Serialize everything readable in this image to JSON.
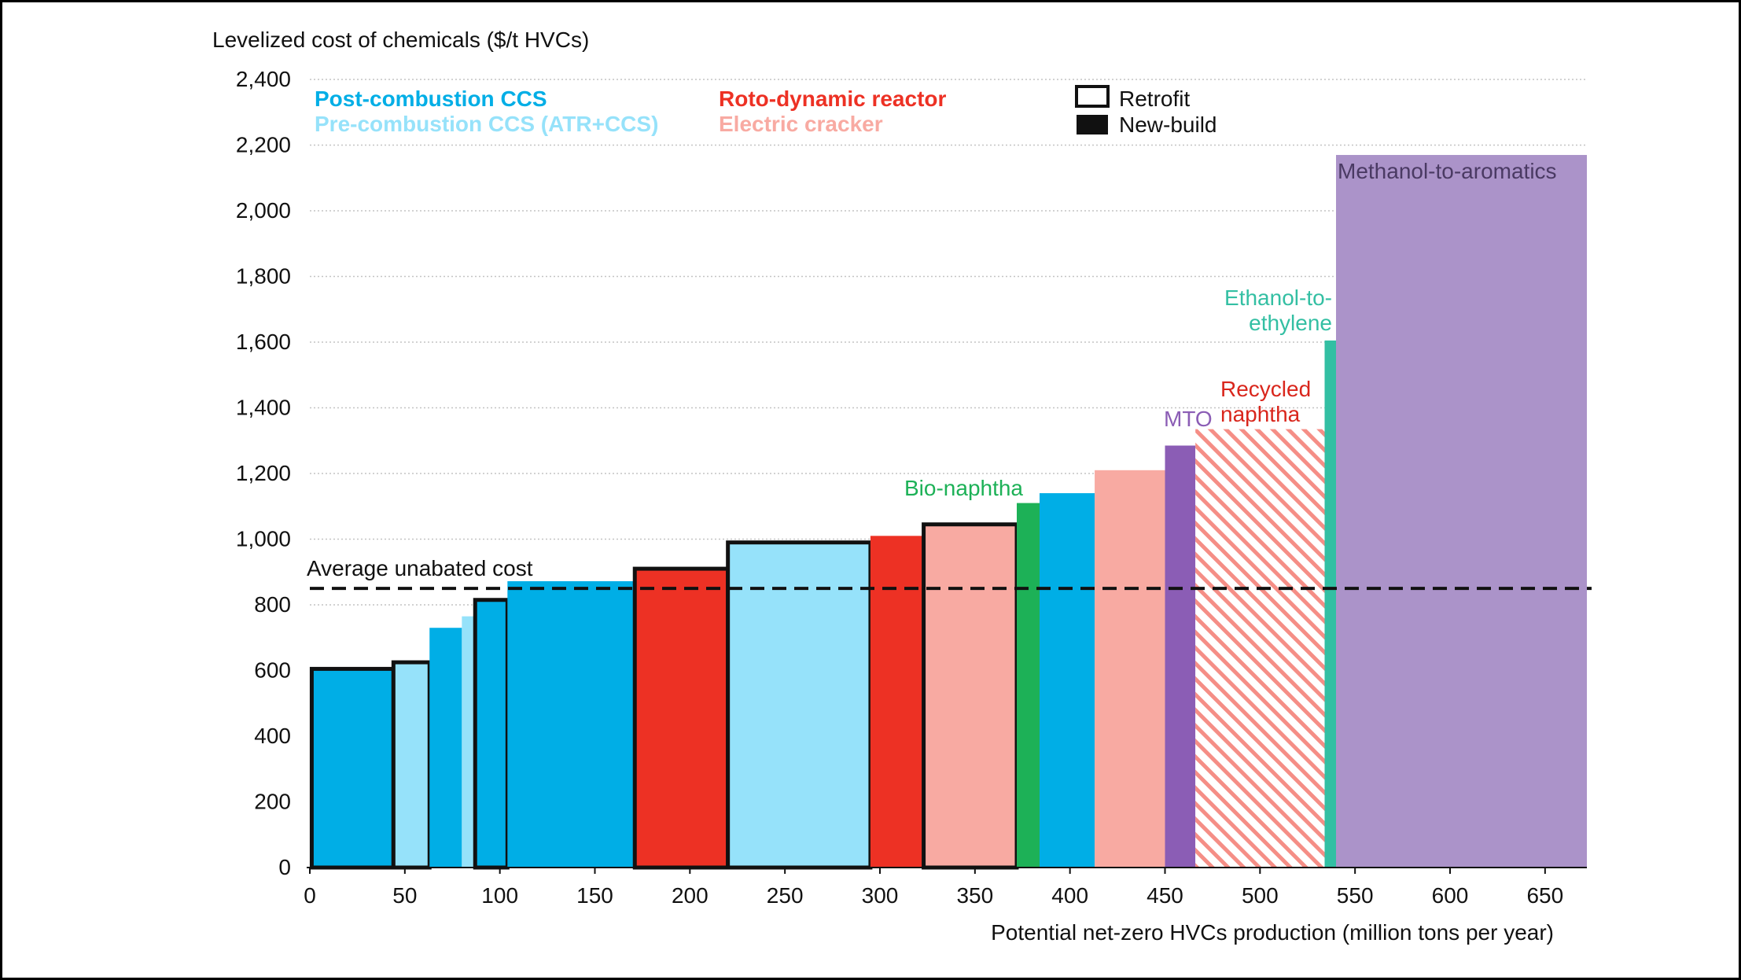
{
  "chart_data": {
    "type": "bar",
    "subtype": "variable-width cost curve",
    "ylabel": "Levelized cost of chemicals ($/t HVCs)",
    "xlabel": "Potential net-zero HVCs production (million tons per year)",
    "xlim": [
      0,
      672
    ],
    "ylim": [
      0,
      2400
    ],
    "xticks": [
      "0",
      "50",
      "100",
      "150",
      "200",
      "250",
      "300",
      "350",
      "400",
      "450",
      "500",
      "550",
      "600",
      "650"
    ],
    "yticks": [
      "0",
      "200",
      "400",
      "600",
      "800",
      "1,000",
      "1,200",
      "1,400",
      "1,600",
      "1,800",
      "2,000",
      "2,200",
      "2,400"
    ],
    "grid": "horizontal dotted",
    "legend": {
      "technologies": [
        {
          "label": "Post-combustion CCS",
          "color": "#00aee6"
        },
        {
          "label": "Pre-combustion CCS (ATR+CCS)",
          "color": "#96e2fa"
        },
        {
          "label": "Roto-dynamic reactor",
          "color": "#ed3124"
        },
        {
          "label": "Electric cracker",
          "color": "#f8aaa2"
        }
      ],
      "build_types": [
        {
          "label": "Retrofit",
          "style": "outline"
        },
        {
          "label": "New-build",
          "style": "solid"
        }
      ]
    },
    "reference_line": {
      "label": "Average unabated cost",
      "value": 850
    },
    "bars": [
      {
        "x0": 1,
        "x1": 44,
        "value": 605,
        "category": "Post-combustion CCS",
        "color": "#00aee6",
        "build": "Retrofit"
      },
      {
        "x0": 44,
        "x1": 63,
        "value": 625,
        "category": "Pre-combustion CCS (ATR+CCS)",
        "color": "#96e2fa",
        "build": "Retrofit"
      },
      {
        "x0": 63,
        "x1": 80,
        "value": 730,
        "category": "Post-combustion CCS",
        "color": "#00aee6",
        "build": "New-build"
      },
      {
        "x0": 80,
        "x1": 87,
        "value": 765,
        "category": "Pre-combustion CCS (ATR+CCS)",
        "color": "#96e2fa",
        "build": "New-build"
      },
      {
        "x0": 87,
        "x1": 104,
        "value": 815,
        "category": "Post-combustion CCS",
        "color": "#00aee6",
        "build": "Retrofit"
      },
      {
        "x0": 104,
        "x1": 171,
        "value": 872,
        "category": "Post-combustion CCS",
        "color": "#00aee6",
        "build": "New-build"
      },
      {
        "x0": 171,
        "x1": 220,
        "value": 910,
        "category": "Roto-dynamic reactor",
        "color": "#ed3124",
        "build": "Retrofit"
      },
      {
        "x0": 220,
        "x1": 295,
        "value": 990,
        "category": "Pre-combustion CCS (ATR+CCS)",
        "color": "#96e2fa",
        "build": "Retrofit"
      },
      {
        "x0": 295,
        "x1": 323,
        "value": 1010,
        "category": "Roto-dynamic reactor",
        "color": "#ed3124",
        "build": "New-build"
      },
      {
        "x0": 323,
        "x1": 372,
        "value": 1045,
        "category": "Electric cracker",
        "color": "#f8aaa2",
        "build": "Retrofit"
      },
      {
        "x0": 372,
        "x1": 384,
        "value": 1110,
        "category": "Bio-naphtha",
        "color": "#1db157",
        "build": "New-build"
      },
      {
        "x0": 384,
        "x1": 413,
        "value": 1140,
        "category": "Post-combustion CCS",
        "color": "#00aee6",
        "build": "New-build"
      },
      {
        "x0": 413,
        "x1": 450,
        "value": 1210,
        "category": "Electric cracker",
        "color": "#f8aaa2",
        "build": "New-build"
      },
      {
        "x0": 450,
        "x1": 466,
        "value": 1285,
        "category": "MTO",
        "color": "#8b5db5",
        "build": "New-build"
      },
      {
        "x0": 466,
        "x1": 534,
        "value": 1335,
        "category": "Recycled naphtha",
        "color": "#f58e86",
        "build": "New-build",
        "pattern": "hatched"
      },
      {
        "x0": 534,
        "x1": 540,
        "value": 1605,
        "category": "Ethanol-to-ethylene",
        "color": "#33bfa3",
        "build": "New-build"
      },
      {
        "x0": 540,
        "x1": 672,
        "value": 2170,
        "category": "Methanol-to-aromatics",
        "color": "#ab93c9",
        "build": "New-build"
      }
    ],
    "annotations": [
      {
        "text": "Bio-naphtha",
        "color": "#1db157"
      },
      {
        "text": "MTO",
        "color": "#8b5db5"
      },
      {
        "text": "Recycled",
        "color": "#d9261c"
      },
      {
        "text": "naphtha",
        "color": "#d9261c"
      },
      {
        "text": "Ethanol-to-",
        "color": "#33bfa3"
      },
      {
        "text": "ethylene",
        "color": "#33bfa3"
      },
      {
        "text": "Methanol-to-aromatics",
        "color": "#4a3a63"
      }
    ]
  }
}
